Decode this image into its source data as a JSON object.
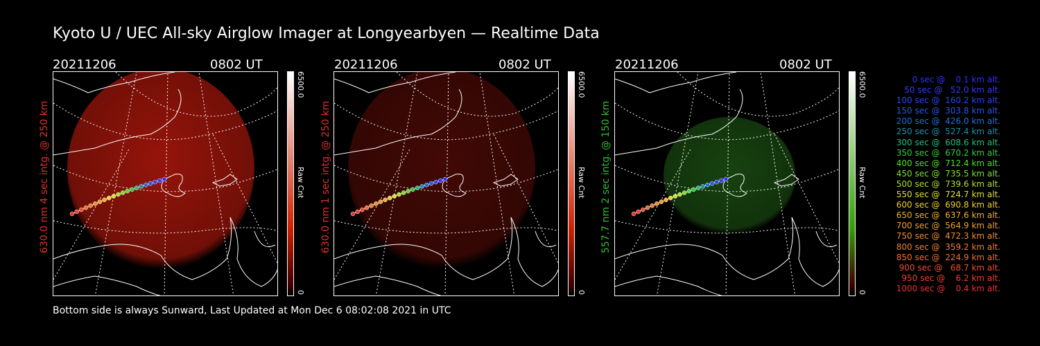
{
  "title": "Kyoto U / UEC All-sky Airglow Imager at Longyearbyen — Realtime Data",
  "panels": [
    {
      "date": "20211206",
      "time": "0802 UT",
      "side_label": "630.0 nm 4 sec intg. @ 250 km",
      "side_color": "#e0302a",
      "glow": "#b0180c",
      "glow_opacity": 0.85,
      "colorbar_max": "6500.0",
      "colorbar_min": "0",
      "colorbar_label": "Raw Cnt",
      "colorbar_top": "#ffffff",
      "colorbar_bottom": "#d02000"
    },
    {
      "date": "20211206",
      "time": "0802 UT",
      "side_label": "630.0 nm 1 sec intg. @ 250 km",
      "side_color": "#e0302a",
      "glow": "#4a0a06",
      "glow_opacity": 0.9,
      "colorbar_max": "6500.0",
      "colorbar_min": "0",
      "colorbar_label": "Raw Cnt",
      "colorbar_top": "#ffffff",
      "colorbar_bottom": "#d02000"
    },
    {
      "date": "20211206",
      "time": "0802 UT",
      "side_label": "557.7 nm 2 sec intg. @ 150 km",
      "side_color": "#30c030",
      "glow": "#1a4a12",
      "glow_opacity": 0.9,
      "colorbar_max": "6500.0",
      "colorbar_min": "0",
      "colorbar_label": "Raw Cnt",
      "colorbar_top": "#ffffff",
      "colorbar_bottom": "#30a000"
    }
  ],
  "footer": "Bottom side is always Sunward, Last Updated at Mon Dec  6 08:02:08 2021 in UTC",
  "legend": [
    {
      "text": "   0 sec @    0.1 km alt.",
      "color": "#3030ff"
    },
    {
      "text": "  50 sec @   52.0 km alt.",
      "color": "#3838ff"
    },
    {
      "text": " 100 sec @  160.2 km alt.",
      "color": "#2848f0"
    },
    {
      "text": " 150 sec @  303.8 km alt.",
      "color": "#2858e8"
    },
    {
      "text": " 200 sec @  426.0 km alt.",
      "color": "#2070e0"
    },
    {
      "text": " 250 sec @  527.4 km alt.",
      "color": "#2090b0"
    },
    {
      "text": " 300 sec @  608.6 km alt.",
      "color": "#20c080"
    },
    {
      "text": " 350 sec @  670.2 km alt.",
      "color": "#30d040"
    },
    {
      "text": " 400 sec @  712.4 km alt.",
      "color": "#50e030"
    },
    {
      "text": " 450 sec @  735.5 km alt.",
      "color": "#80e030"
    },
    {
      "text": " 500 sec @  739.6 km alt.",
      "color": "#b0e030"
    },
    {
      "text": " 550 sec @  724.7 km alt.",
      "color": "#e0e030"
    },
    {
      "text": " 600 sec @  690.8 km alt.",
      "color": "#f0d030"
    },
    {
      "text": " 650 sec @  637.6 km alt.",
      "color": "#f0b030"
    },
    {
      "text": " 700 sec @  564.9 km alt.",
      "color": "#f0a030"
    },
    {
      "text": " 750 sec @  472.3 km alt.",
      "color": "#f09030"
    },
    {
      "text": " 800 sec @  359.2 km alt.",
      "color": "#f08030"
    },
    {
      "text": " 850 sec @  224.9 km alt.",
      "color": "#f07030"
    },
    {
      "text": " 900 sec @   68.7 km alt.",
      "color": "#f05030"
    },
    {
      "text": " 950 sec @    6.2 km alt.",
      "color": "#f04030"
    },
    {
      "text": "1000 sec @    0.4 km alt.",
      "color": "#f03030"
    }
  ],
  "track_colors": [
    "#3030ff",
    "#3838ff",
    "#2848f0",
    "#2858e8",
    "#2070e0",
    "#2090b0",
    "#20c080",
    "#30d040",
    "#50e030",
    "#80e030",
    "#b0e030",
    "#e0e030",
    "#f0d030",
    "#f0b030",
    "#f0a030",
    "#f09030",
    "#f08030",
    "#f07030",
    "#f05030",
    "#f04030",
    "#f03030"
  ]
}
